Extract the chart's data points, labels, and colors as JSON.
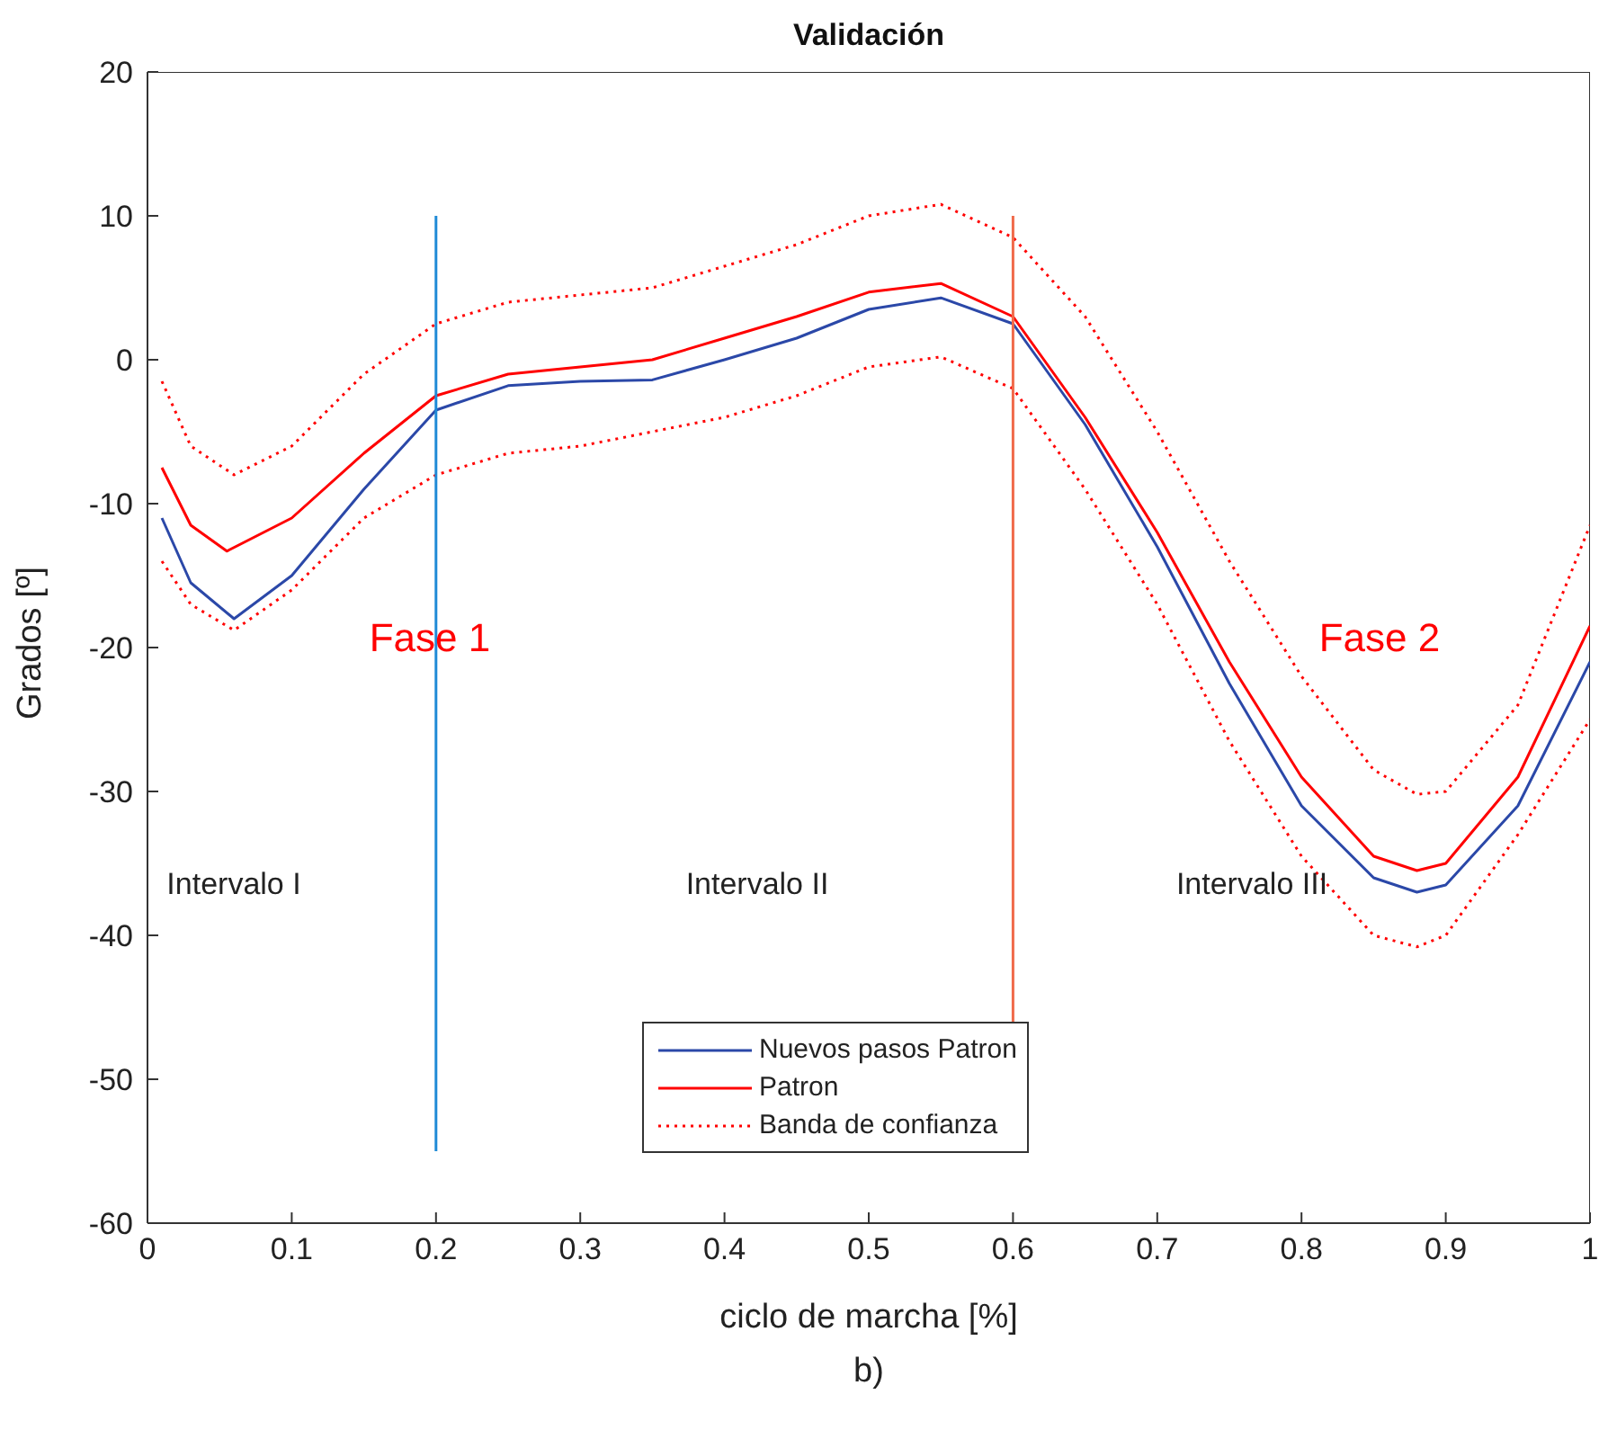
{
  "chart_data": {
    "type": "line",
    "title": "Validación",
    "xlabel": "ciclo de marcha [%]",
    "ylabel": "Grados [º]",
    "xlim": [
      0,
      1
    ],
    "xticks": [
      0,
      0.1,
      0.2,
      0.3,
      0.4,
      0.5,
      0.6,
      0.7,
      0.8,
      0.9,
      1
    ],
    "ylim": [
      -60,
      20
    ],
    "yticks": [
      -60,
      -50,
      -40,
      -30,
      -20,
      -10,
      0,
      10,
      20
    ],
    "grid": false,
    "legend": "bottom",
    "marker": "none",
    "series": [
      {
        "name": "Nuevos pasos Patron",
        "color": "#2b48a8",
        "line_style": "solid",
        "x": [
          0.01,
          0.03,
          0.06,
          0.1,
          0.15,
          0.2,
          0.25,
          0.3,
          0.35,
          0.4,
          0.45,
          0.5,
          0.55,
          0.6,
          0.65,
          0.7,
          0.75,
          0.8,
          0.85,
          0.88,
          0.9,
          0.95,
          1.0
        ],
        "values": [
          -11,
          -15.5,
          -18,
          -15,
          -9,
          -3.5,
          -1.8,
          -1.5,
          -1.4,
          0,
          1.5,
          3.5,
          4.3,
          2.5,
          -4.5,
          -13,
          -22.5,
          -31,
          -36,
          -37,
          -36.5,
          -31,
          -21
        ]
      },
      {
        "name": "Patron",
        "color": "#ff0000",
        "line_style": "solid",
        "x": [
          0.01,
          0.03,
          0.055,
          0.1,
          0.15,
          0.2,
          0.25,
          0.3,
          0.35,
          0.4,
          0.45,
          0.5,
          0.55,
          0.6,
          0.65,
          0.7,
          0.75,
          0.8,
          0.85,
          0.88,
          0.9,
          0.95,
          1.0
        ],
        "values": [
          -7.5,
          -11.5,
          -13.3,
          -11,
          -6.5,
          -2.5,
          -1,
          -0.5,
          0,
          1.5,
          3,
          4.7,
          5.3,
          3,
          -4,
          -12,
          -21,
          -29,
          -34.5,
          -35.5,
          -35,
          -29,
          -18.5
        ]
      },
      {
        "name": "Banda de confianza",
        "color": "#ff0000",
        "line_style": "dotted",
        "x": [
          0.01,
          0.03,
          0.06,
          0.1,
          0.15,
          0.2,
          0.25,
          0.3,
          0.35,
          0.4,
          0.45,
          0.5,
          0.55,
          0.6,
          0.65,
          0.7,
          0.75,
          0.8,
          0.85,
          0.88,
          0.9,
          0.95,
          1.0
        ],
        "values": [
          -1.5,
          -6,
          -8,
          -6,
          -1,
          2.5,
          4,
          4.5,
          5,
          6.5,
          8,
          10,
          10.8,
          8.5,
          3,
          -5,
          -14,
          -22,
          -28.5,
          -30.2,
          -30,
          -24,
          -11.5
        ]
      },
      {
        "color": "#ff0000",
        "line_style": "dotted",
        "x": [
          0.01,
          0.03,
          0.06,
          0.1,
          0.15,
          0.2,
          0.25,
          0.3,
          0.35,
          0.4,
          0.45,
          0.5,
          0.55,
          0.6,
          0.65,
          0.7,
          0.75,
          0.8,
          0.85,
          0.88,
          0.9,
          0.95,
          1.0
        ],
        "values": [
          -14,
          -17,
          -18.8,
          -16,
          -11,
          -8,
          -6.5,
          -6,
          -5,
          -4,
          -2.5,
          -0.5,
          0.2,
          -2,
          -9,
          -17,
          -26.5,
          -34.5,
          -40,
          -40.8,
          -40,
          -33,
          -25
        ]
      },
      {
        "color": "#1f8ad6",
        "line_style": "solid",
        "x": [
          0.2,
          0.2
        ],
        "values": [
          -55,
          10
        ]
      },
      {
        "color": "#f06a4a",
        "line_style": "solid",
        "x": [
          0.6,
          0.6
        ],
        "values": [
          -46,
          10
        ]
      }
    ],
    "annotations": [
      "Fase 1",
      "Fase 2",
      "Intervalo I",
      "Intervalo II",
      "Intervalo III",
      "b)"
    ]
  }
}
